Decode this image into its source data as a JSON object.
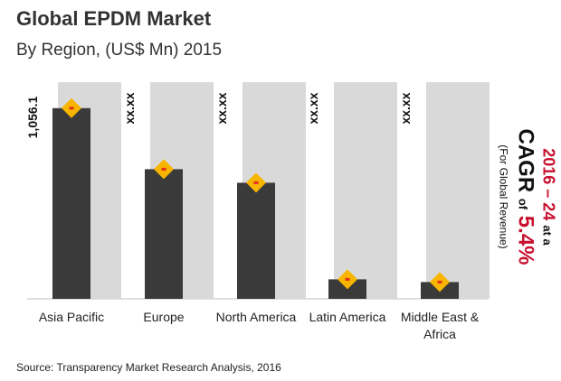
{
  "chart_data": {
    "type": "bar",
    "title": "Global EPDM Market",
    "subtitle": "By Region, (US$ Mn) 2015",
    "categories": [
      "Asia Pacific",
      "Europe",
      "North America",
      "Latin America",
      "Middle East & Africa"
    ],
    "category_lines": [
      [
        "Asia Pacific"
      ],
      [
        "Europe"
      ],
      [
        "North America"
      ],
      [
        "Latin America"
      ],
      [
        "Middle East &",
        "Africa"
      ]
    ],
    "values": [
      1056.1,
      718,
      643,
      108,
      93
    ],
    "data_labels": [
      "1,056.1",
      "xx.xx",
      "xx.xx",
      "xx.xx",
      "xx.xx"
    ],
    "ylim": [
      0,
      1200
    ],
    "grid": false,
    "legend": "none",
    "colors": {
      "bar": "#3a3a3a",
      "background_column": "#d9d9d9",
      "marker_diamond": "#f7b500",
      "marker_center": "#e0301e",
      "cagr_accent": "#c8102e"
    }
  },
  "cagr": {
    "period": "2016 – 24",
    "at_a": "at a",
    "label": "CAGR",
    "of": "of",
    "value": "5.4%",
    "note": "(For Global Revenue)"
  },
  "source": "Source: Transparency Market Research Analysis, 2016"
}
